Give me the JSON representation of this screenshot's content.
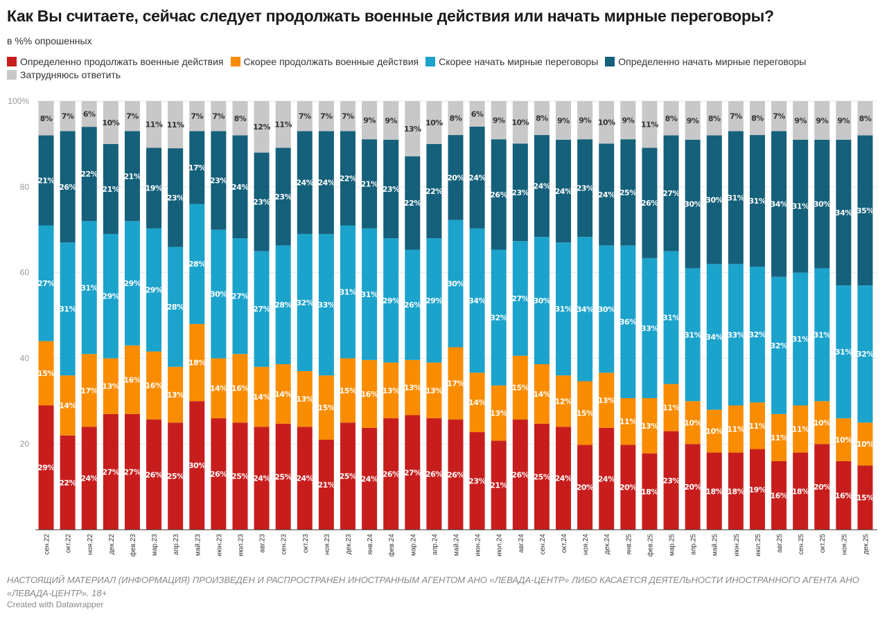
{
  "chart_data": {
    "type": "bar",
    "stacked": true,
    "title": "Как Вы считаете, сейчас следует продолжать военные действия или начать мирные переговоры?",
    "subtitle": "в %% опрошенных",
    "ylim": [
      0,
      100
    ],
    "yticks": [
      "100%",
      "80",
      "60",
      "40",
      "20"
    ],
    "grid": true,
    "legend_position": "top",
    "categories": [
      "сен.22",
      "окт.22",
      "ноя.22",
      "дек.22",
      "фев.23",
      "мар.23",
      "апр.23",
      "май.23",
      "июн.23",
      "июл.23",
      "авг.23",
      "сен.23",
      "окт.23",
      "ноя.23",
      "дек.23",
      "янв.24",
      "фев.24",
      "мар.24",
      "апр.24",
      "май.24",
      "июн.24",
      "июл.24",
      "авг.24",
      "сен.24",
      "окт.24",
      "ноя.24",
      "дек.24",
      "янв.25",
      "фев.25",
      "мар.25",
      "апр.25",
      "май.25",
      "июн.25",
      "июл.25",
      "авг.25",
      "сен.25",
      "окт.25",
      "ноя.25",
      "дек.25"
    ],
    "series": [
      {
        "name": "Определенно продолжать военные действия",
        "color": "#c71e1d",
        "label_color": "#ffffff",
        "values": [
          29,
          22,
          24,
          27,
          27,
          26,
          25,
          30,
          26,
          25,
          24,
          25,
          24,
          21,
          25,
          24,
          26,
          27,
          26,
          26,
          23,
          21,
          26,
          25,
          24,
          20,
          24,
          20,
          18,
          23,
          20,
          18,
          18,
          19,
          16,
          18,
          20,
          16,
          15
        ]
      },
      {
        "name": "Скорее продолжать военные действия",
        "color": "#fa8c00",
        "label_color": "#ffffff",
        "values": [
          15,
          14,
          17,
          13,
          16,
          16,
          13,
          18,
          14,
          16,
          14,
          14,
          13,
          15,
          15,
          16,
          13,
          13,
          13,
          17,
          14,
          13,
          15,
          14,
          12,
          15,
          13,
          11,
          13,
          11,
          10,
          10,
          11,
          11,
          11,
          11,
          10,
          10,
          10
        ]
      },
      {
        "name": "Скорее начать мирные переговоры",
        "color": "#1ba3cc",
        "label_color": "#ffffff",
        "values": [
          27,
          31,
          31,
          29,
          29,
          29,
          28,
          28,
          30,
          27,
          27,
          28,
          32,
          33,
          31,
          31,
          29,
          26,
          29,
          30,
          34,
          32,
          27,
          30,
          31,
          34,
          30,
          36,
          33,
          31,
          31,
          34,
          33,
          32,
          32,
          31,
          31,
          31,
          32
        ]
      },
      {
        "name": "Определенно начать мирные переговоры",
        "color": "#15607a",
        "label_color": "#ffffff",
        "values": [
          21,
          26,
          22,
          21,
          21,
          19,
          23,
          17,
          23,
          24,
          23,
          23,
          24,
          24,
          22,
          21,
          23,
          22,
          22,
          20,
          24,
          26,
          23,
          24,
          24,
          23,
          24,
          25,
          26,
          27,
          30,
          30,
          31,
          31,
          34,
          31,
          30,
          34,
          35
        ]
      },
      {
        "name": "Затрудняюсь ответить",
        "color": "#c8c8c8",
        "label_color": "#333333",
        "values": [
          8,
          7,
          6,
          10,
          7,
          11,
          11,
          7,
          7,
          8,
          12,
          11,
          7,
          7,
          7,
          9,
          9,
          13,
          10,
          8,
          6,
          9,
          10,
          8,
          9,
          9,
          10,
          9,
          11,
          8,
          9,
          8,
          7,
          8,
          7,
          9,
          9,
          9,
          8
        ]
      }
    ]
  },
  "footer": {
    "notice": "НАСТОЯЩИЙ МАТЕРИАЛ (ИНФОРМАЦИЯ) ПРОИЗВЕДЕН И РАСПРОСТРАНЕН ИНОСТРАННЫМ АГЕНТОМ АНО «ЛЕВАДА-ЦЕНТР» ЛИБО КАСАЕТСЯ ДЕЯТЕЛЬНОСТИ ИНОСТРАННОГО АГЕНТА АНО «ЛЕВАДА-ЦЕНТР». 18+",
    "credit": "Created with Datawrapper"
  }
}
